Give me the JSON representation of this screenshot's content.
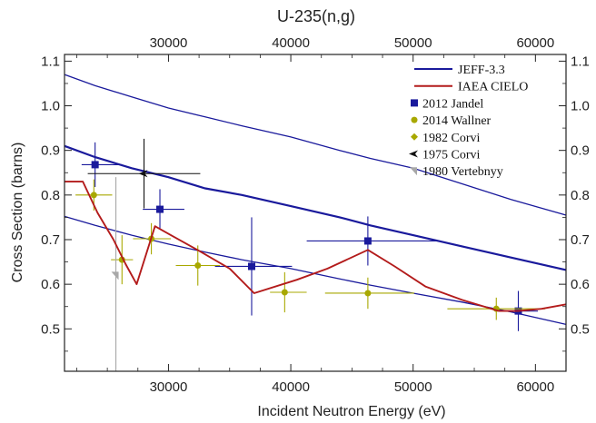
{
  "chart_data": {
    "type": "scatter",
    "title": "U-235(n,g)",
    "xlabel": "Incident Neutron Energy (eV)",
    "ylabel": "Cross Section (barns)",
    "xlim": [
      21500,
      62500
    ],
    "ylim": [
      0.405,
      1.115
    ],
    "x_ticks": [
      30000,
      40000,
      50000,
      60000
    ],
    "y_ticks": [
      0.5,
      0.6,
      0.7,
      0.8,
      0.9,
      1.0,
      1.1
    ],
    "x_tick_labels": [
      "30000",
      "40000",
      "50000",
      "60000"
    ],
    "y_tick_labels": [
      "0.5",
      "0.6",
      "0.7",
      "0.8",
      "0.9",
      "1.0",
      "1.1"
    ],
    "legend_position": "top-right",
    "grid": false,
    "series": [
      {
        "name": "JEFF-3.3",
        "kind": "band",
        "color": "#1a1a9c",
        "upper": {
          "x": [
            21500,
            24000,
            27000,
            30000,
            33000,
            36000,
            40000,
            44000,
            46500,
            50000,
            54000,
            58000,
            62500
          ],
          "y": [
            1.07,
            1.045,
            1.02,
            0.995,
            0.975,
            0.955,
            0.93,
            0.9,
            0.882,
            0.86,
            0.825,
            0.79,
            0.755
          ]
        },
        "central": {
          "x": [
            21500,
            24000,
            27000,
            30000,
            33000,
            36000,
            40000,
            44000,
            46500,
            50000,
            54000,
            58000,
            62500
          ],
          "y": [
            0.91,
            0.885,
            0.86,
            0.84,
            0.815,
            0.8,
            0.775,
            0.75,
            0.732,
            0.71,
            0.685,
            0.66,
            0.632
          ]
        },
        "lower": {
          "x": [
            21500,
            24000,
            27000,
            30000,
            33000,
            36000,
            40000,
            44000,
            46500,
            50000,
            54000,
            58000,
            62500
          ],
          "y": [
            0.752,
            0.732,
            0.71,
            0.69,
            0.672,
            0.655,
            0.635,
            0.612,
            0.598,
            0.58,
            0.56,
            0.538,
            0.51
          ]
        }
      },
      {
        "name": "IAEA CIELO",
        "kind": "line",
        "color": "#b31b1b",
        "x": [
          21500,
          23000,
          24200,
          25500,
          26500,
          27400,
          28900,
          30200,
          32500,
          35000,
          37000,
          40500,
          43000,
          46300,
          48500,
          51000,
          54000,
          57000,
          58600,
          60500,
          62500
        ],
        "y": [
          0.83,
          0.83,
          0.76,
          0.7,
          0.645,
          0.6,
          0.73,
          0.71,
          0.675,
          0.635,
          0.58,
          0.61,
          0.635,
          0.677,
          0.64,
          0.595,
          0.565,
          0.54,
          0.54,
          0.545,
          0.555
        ]
      },
      {
        "name": "2012 Jandel",
        "kind": "points",
        "color": "#1a1a9c",
        "x": [
          24000,
          29300,
          36800,
          46300,
          58600
        ],
        "y": [
          0.868,
          0.768,
          0.64,
          0.697,
          0.54
        ],
        "x_err_low": [
          1100,
          1400,
          3000,
          5000,
          1600
        ],
        "x_err_high": [
          2200,
          2000,
          3300,
          5600,
          1600
        ],
        "y_err": [
          0.05,
          0.045,
          0.11,
          0.055,
          0.045
        ]
      },
      {
        "name": "2014 Wallner",
        "kind": "points",
        "color": "#a8a800",
        "x": [
          23900,
          26200,
          28600,
          32400,
          39500,
          46300,
          56800
        ],
        "y": [
          0.8,
          0.655,
          0.702,
          0.642,
          0.582,
          0.58,
          0.545
        ],
        "x_err_low": [
          1500,
          900,
          1500,
          1800,
          1200,
          3500,
          4000
        ],
        "x_err_high": [
          1500,
          900,
          1600,
          1800,
          1800,
          3800,
          4000
        ],
        "y_err": [
          0.035,
          0.055,
          0.035,
          0.045,
          0.045,
          0.035,
          0.025
        ]
      },
      {
        "name": "1982 Corvi",
        "kind": "points",
        "color": "#a8a800",
        "x": [],
        "y": []
      },
      {
        "name": "1975 Corvi",
        "kind": "points",
        "color": "#111111",
        "x": [
          28000
        ],
        "y": [
          0.848
        ],
        "x_err_low": [
          4600
        ],
        "x_err_high": [
          4600
        ],
        "y_err": [
          0.078
        ]
      },
      {
        "name": "1980 Vertebnyy",
        "kind": "points",
        "color": "#a8a8a8",
        "x": [
          25700
        ],
        "y": [
          0.62
        ],
        "x_err_low": [
          0
        ],
        "x_err_high": [
          0
        ],
        "y_err": [
          0.22
        ]
      }
    ]
  }
}
